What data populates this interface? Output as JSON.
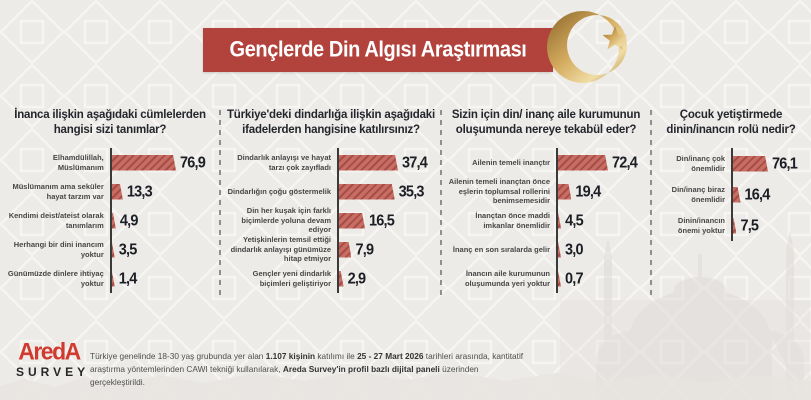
{
  "header": {
    "title": "Gençlerde Din Algısı Araştırması",
    "icon": "crescent-and-star"
  },
  "colors": {
    "banner_red": "#b2423c",
    "bar_fill": "#c66e64",
    "bar_hatch": "#a94c45",
    "gold": "#c79a4b",
    "background": "#edebe8"
  },
  "chart_data": [
    {
      "type": "bar",
      "orientation": "horizontal",
      "hatch": true,
      "title": "İnanca ilişkin aşağıdaki cümlelerden hangisi sizi tanımlar?",
      "categories": [
        "Elhamdülillah, Müslümanım",
        "Müslümanım ama seküler hayat tarzım var",
        "Kendimi deist/ateist olarak tanımlarım",
        "Herhangi bir dini inancım yoktur",
        "Günümüzde dinlere ihtiyaç yoktur"
      ],
      "values": [
        76.9,
        13.3,
        4.9,
        3.5,
        1.4
      ],
      "value_labels": [
        "76,9",
        "13,3",
        "4,9",
        "3,5",
        "1,4"
      ],
      "unit": "%"
    },
    {
      "type": "bar",
      "orientation": "horizontal",
      "hatch": true,
      "title": "Türkiye'deki dindarlığa ilişkin aşağıdaki ifadelerden hangisine katılırsınız?",
      "categories": [
        "Dindarlık anlayışı ve hayat tarzı çok zayıfladı",
        "Dindarlığın çoğu göstermelik",
        "Din her kuşak için farklı biçimlerde yoluna devam ediyor",
        "Yetişkinlerin temsil ettiği dindarlık anlayışı günümüze hitap etmiyor",
        "Gençler yeni dindarlık biçimleri geliştiriyor"
      ],
      "values": [
        37.4,
        35.3,
        16.5,
        7.9,
        2.9
      ],
      "value_labels": [
        "37,4",
        "35,3",
        "16,5",
        "7,9",
        "2,9"
      ],
      "unit": "%"
    },
    {
      "type": "bar",
      "orientation": "horizontal",
      "hatch": true,
      "title": "Sizin için din/ inanç aile kurumunun oluşumunda nereye tekabül eder?",
      "categories": [
        "Ailenin temeli inançtır",
        "Ailenin temeli inançtan önce eşlerin toplumsal rollerini benimsemesidir",
        "İnançtan önce maddi imkanlar önemlidir",
        "İnanç en son sıralarda gelir",
        "İnancın aile kurumunun oluşumunda yeri yoktur"
      ],
      "values": [
        72.4,
        19.4,
        4.5,
        3.0,
        0.7
      ],
      "value_labels": [
        "72,4",
        "19,4",
        "4,5",
        "3,0",
        "0,7"
      ],
      "unit": "%"
    },
    {
      "type": "bar",
      "orientation": "horizontal",
      "hatch": true,
      "title": "Çocuk yetiştirmede dinin/inancın rolü nedir?",
      "categories": [
        "Din/inanç çok önemlidir",
        "Din/inanç biraz önemlidir",
        "Dinin/inancın önemi yoktur"
      ],
      "values": [
        76.1,
        16.4,
        7.5
      ],
      "value_labels": [
        "76,1",
        "16,4",
        "7,5"
      ],
      "unit": "%"
    }
  ],
  "footer": {
    "logo": {
      "brand": "AredA",
      "sub": "SURVEY"
    },
    "segments": [
      {
        "text": "Türkiye genelinde 18-30 yaş grubunda yer alan "
      },
      {
        "text": "1.107 kişinin",
        "bold": true
      },
      {
        "text": " katılımı ile "
      },
      {
        "text": "25 - 27 Mart 2026",
        "bold": true
      },
      {
        "text": " tarihleri arasında, kantitatif araştırma yöntemlerinden CAWI tekniği kullanılarak, "
      },
      {
        "text": "Areda Survey'in profil bazlı dijital paneli",
        "bold": true
      },
      {
        "text": " üzerinden gerçekleştirildi."
      }
    ]
  }
}
